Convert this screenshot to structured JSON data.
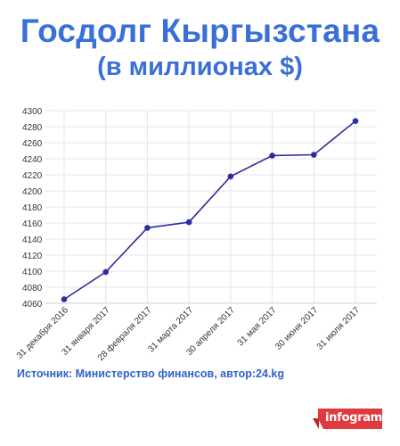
{
  "header": {
    "title": "Госдолг Кыргызстана",
    "subtitle": "(в миллионах $)"
  },
  "chart_data": {
    "type": "line",
    "categories": [
      "31 декабря 2016",
      "31 января 2017",
      "28 февраля 2017",
      "31 марта 2017",
      "30 апреля 2017",
      "31 мая 2017",
      "30 июня 2017",
      "31 июля 2017"
    ],
    "values": [
      4065,
      4099,
      4154,
      4161,
      4218,
      4244,
      4245,
      4287
    ],
    "ylim": [
      4060,
      4300
    ],
    "yticks": [
      4060,
      4080,
      4100,
      4120,
      4140,
      4160,
      4180,
      4200,
      4220,
      4240,
      4260,
      4280,
      4300
    ],
    "grid": true,
    "line_color": "#2b2da3"
  },
  "footer": {
    "source": "Источник: Министерство финансов, автор:24.kg",
    "logo": "infogram"
  }
}
